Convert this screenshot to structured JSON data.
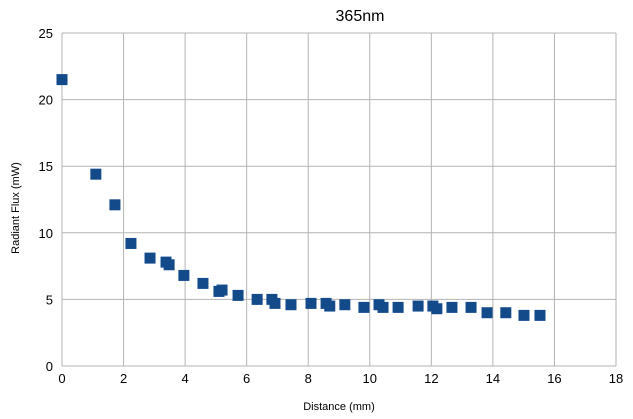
{
  "chart_data": {
    "type": "scatter",
    "title": "365nm",
    "xlabel": "Distance (mm)",
    "ylabel": "Radiant Flux (mW)",
    "xlim": [
      0,
      18
    ],
    "ylim": [
      0,
      25
    ],
    "xticks": [
      0,
      2,
      4,
      6,
      8,
      10,
      12,
      14,
      16,
      18
    ],
    "yticks": [
      0,
      5,
      10,
      15,
      20,
      25
    ],
    "grid": true,
    "legend": "none",
    "marker_color": "#134a8a",
    "series": [
      {
        "name": "365nm",
        "x": [
          0,
          1.1,
          1.72,
          2.24,
          2.86,
          3.38,
          3.48,
          3.96,
          4.58,
          5.1,
          5.2,
          5.72,
          6.34,
          6.82,
          6.92,
          7.44,
          8.09,
          8.58,
          8.7,
          9.19,
          9.81,
          10.3,
          10.43,
          10.92,
          11.57,
          12.05,
          12.18,
          12.67,
          13.29,
          13.81,
          14.42,
          15.01,
          15.53
        ],
        "y": [
          21.5,
          14.4,
          12.1,
          9.2,
          8.1,
          7.8,
          7.6,
          6.8,
          6.2,
          5.6,
          5.7,
          5.3,
          5.0,
          5.0,
          4.7,
          4.6,
          4.7,
          4.7,
          4.5,
          4.6,
          4.4,
          4.6,
          4.4,
          4.4,
          4.5,
          4.5,
          4.3,
          4.4,
          4.4,
          4.0,
          4.0,
          3.8,
          3.8
        ]
      }
    ]
  }
}
